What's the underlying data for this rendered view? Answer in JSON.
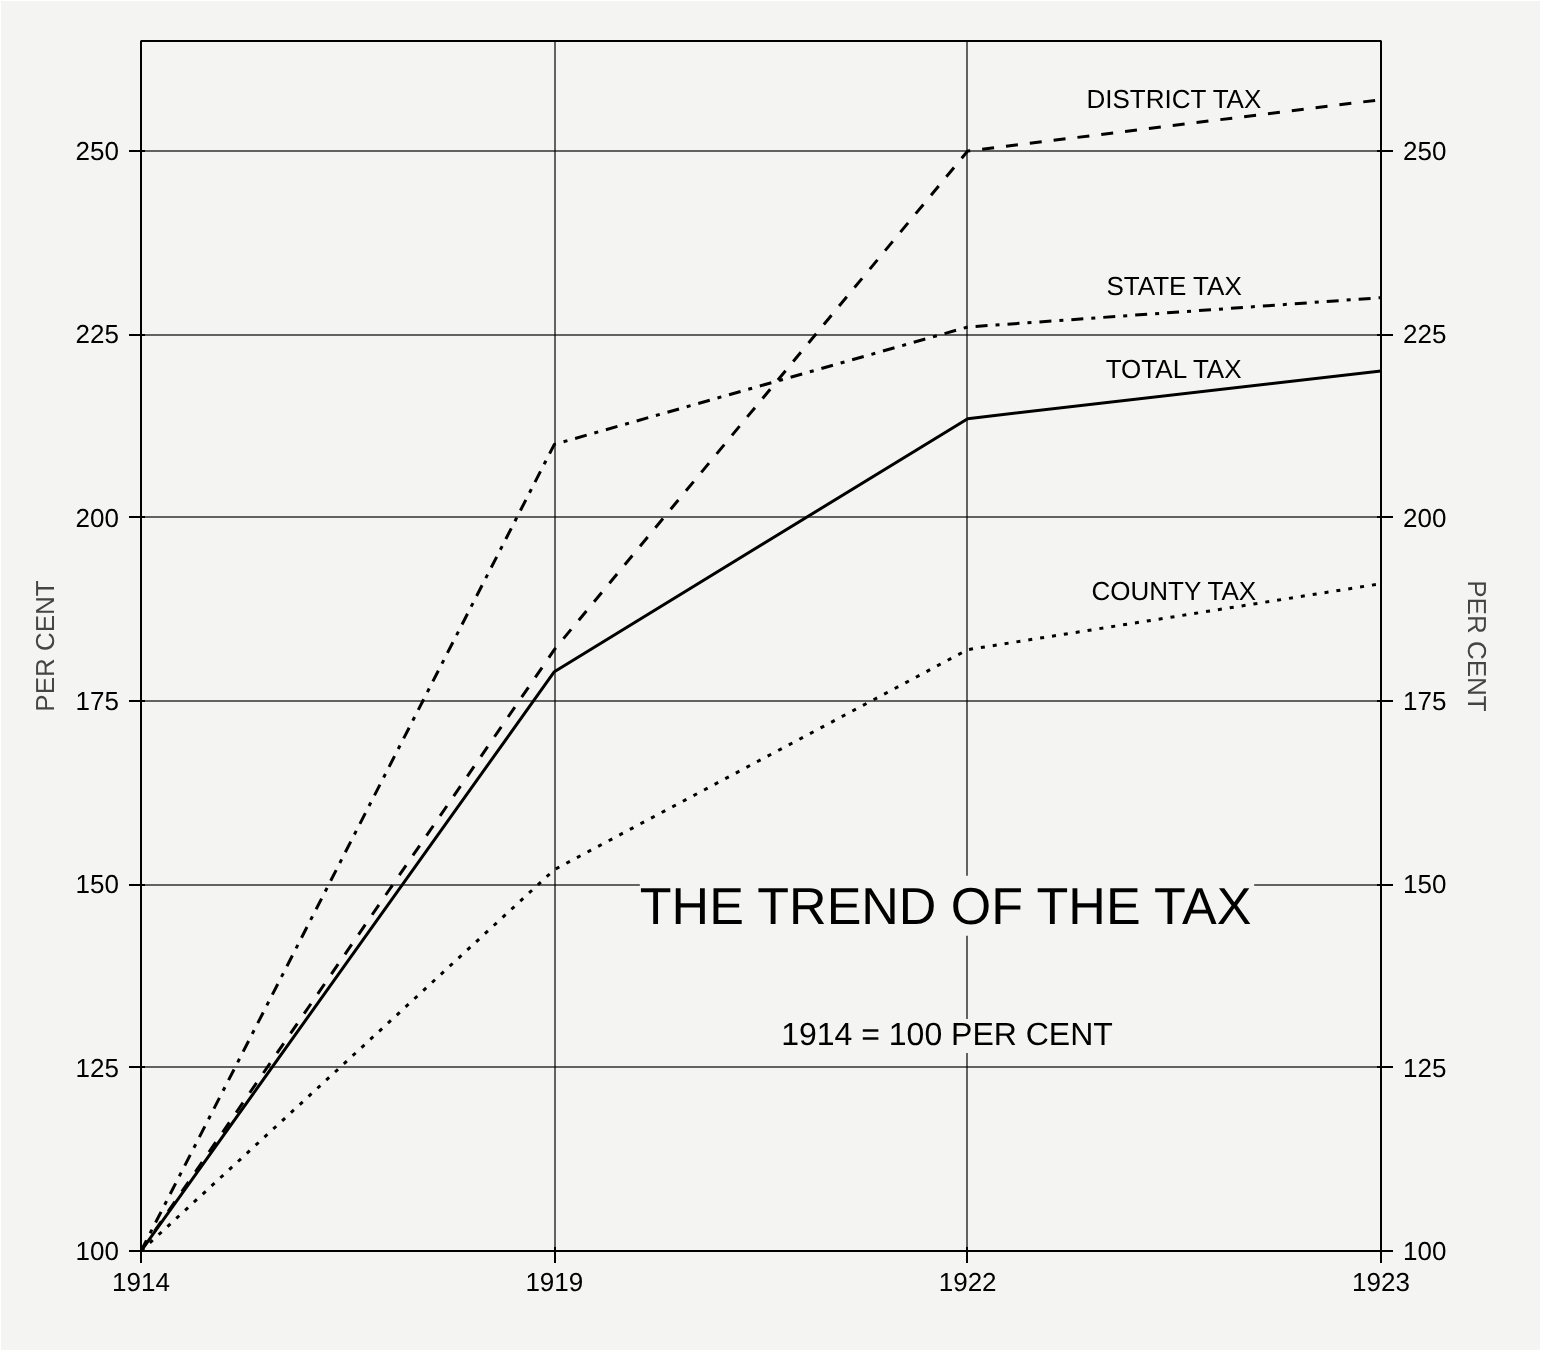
{
  "chart_data": {
    "type": "line",
    "title": "THE TREND OF THE TAX",
    "subtitle": "1914 = 100 PER CENT",
    "ylabel": "PER CENT",
    "y2label": "PER CENT",
    "categories": [
      "1914",
      "1919",
      "1922",
      "1923"
    ],
    "series": [
      {
        "name": "DISTRICT TAX",
        "color": "#000000",
        "line_style": "dashed",
        "values": [
          100,
          182,
          250,
          257
        ]
      },
      {
        "name": "STATE TAX",
        "color": "#000000",
        "line_style": "dashdot",
        "values": [
          100,
          210,
          226,
          230
        ]
      },
      {
        "name": "TOTAL TAX",
        "color": "#000000",
        "line_style": "solid",
        "values": [
          100,
          179,
          213.5,
          220
        ]
      },
      {
        "name": "COUNTY TAX",
        "color": "#000000",
        "line_style": "dotted",
        "values": [
          100,
          152,
          182,
          191
        ]
      }
    ],
    "ylim": [
      100,
      265
    ],
    "yticks": [
      100,
      125,
      150,
      175,
      200,
      225,
      250
    ],
    "y2lim": [
      100,
      265
    ],
    "y2ticks": [
      100,
      125,
      150,
      175,
      200,
      225,
      250
    ],
    "grid": true,
    "legend": false,
    "marker": "none"
  }
}
